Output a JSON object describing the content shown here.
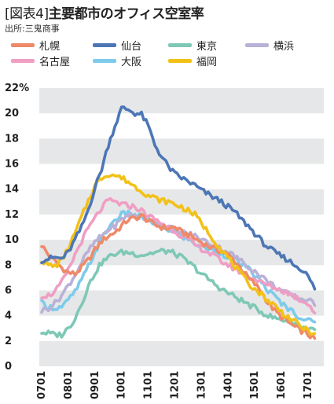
{
  "header": {
    "title_prefix": "[図表4]",
    "title_main": "主要都市のオフィス空室率",
    "source": "出所:三鬼商事"
  },
  "chart_data": {
    "type": "line",
    "title": "[図表4] 主要都市のオフィス空室率",
    "ylim": [
      0,
      22
    ],
    "y_ticks": [
      {
        "value": 22,
        "label": "22%"
      },
      {
        "value": 20,
        "label": "20"
      },
      {
        "value": 18,
        "label": "18"
      },
      {
        "value": 16,
        "label": "16"
      },
      {
        "value": 14,
        "label": "14"
      },
      {
        "value": 12,
        "label": "12"
      },
      {
        "value": 10,
        "label": "10"
      },
      {
        "value": 8,
        "label": "8"
      },
      {
        "value": 6,
        "label": "6"
      },
      {
        "value": 4,
        "label": "4"
      },
      {
        "value": 2,
        "label": "2"
      },
      {
        "value": 0,
        "label": "0"
      }
    ],
    "x_ticks": [
      "0701",
      "0801",
      "0901",
      "1001",
      "1101",
      "1201",
      "1301",
      "1401",
      "1501",
      "1601",
      "1701"
    ],
    "grid": "horizontal bands",
    "legend_position": "top",
    "series": [
      {
        "name": "札幌",
        "color": "#ee8a6a",
        "points": [
          [
            0,
            9.6
          ],
          [
            3,
            8.8
          ],
          [
            6,
            8.3
          ],
          [
            9,
            7.8
          ],
          [
            12,
            7.4
          ],
          [
            15,
            7.3
          ],
          [
            18,
            7.8
          ],
          [
            21,
            8.4
          ],
          [
            24,
            9.2
          ],
          [
            27,
            9.9
          ],
          [
            30,
            10.3
          ],
          [
            33,
            10.6
          ],
          [
            36,
            11.1
          ],
          [
            39,
            11.6
          ],
          [
            42,
            11.7
          ],
          [
            45,
            11.9
          ],
          [
            48,
            11.5
          ],
          [
            51,
            11.2
          ],
          [
            54,
            11.0
          ],
          [
            57,
            10.9
          ],
          [
            60,
            11.0
          ],
          [
            63,
            10.6
          ],
          [
            66,
            10.4
          ],
          [
            69,
            10.1
          ],
          [
            72,
            9.8
          ],
          [
            75,
            9.5
          ],
          [
            78,
            9.3
          ],
          [
            81,
            9.1
          ],
          [
            84,
            8.8
          ],
          [
            87,
            8.3
          ],
          [
            90,
            7.7
          ],
          [
            93,
            7.0
          ],
          [
            96,
            6.5
          ],
          [
            99,
            5.9
          ],
          [
            102,
            5.0
          ],
          [
            105,
            4.4
          ],
          [
            108,
            3.9
          ],
          [
            111,
            3.5
          ],
          [
            114,
            3.1
          ],
          [
            117,
            2.8
          ],
          [
            120,
            2.5
          ],
          [
            123,
            2.2
          ]
        ]
      },
      {
        "name": "仙台",
        "color": "#4d76b6",
        "points": [
          [
            0,
            8.4
          ],
          [
            3,
            8.5
          ],
          [
            6,
            8.6
          ],
          [
            9,
            8.5
          ],
          [
            12,
            9.0
          ],
          [
            15,
            10.0
          ],
          [
            18,
            11.0
          ],
          [
            21,
            12.4
          ],
          [
            24,
            14.1
          ],
          [
            27,
            15.6
          ],
          [
            30,
            17.5
          ],
          [
            33,
            19.0
          ],
          [
            36,
            20.4
          ],
          [
            39,
            20.3
          ],
          [
            42,
            20.0
          ],
          [
            45,
            19.9
          ],
          [
            48,
            19.0
          ],
          [
            51,
            17.5
          ],
          [
            54,
            16.6
          ],
          [
            57,
            15.8
          ],
          [
            60,
            15.2
          ],
          [
            63,
            14.9
          ],
          [
            66,
            14.6
          ],
          [
            69,
            14.3
          ],
          [
            72,
            13.9
          ],
          [
            75,
            13.6
          ],
          [
            78,
            13.3
          ],
          [
            81,
            13.0
          ],
          [
            84,
            12.6
          ],
          [
            87,
            12.2
          ],
          [
            90,
            11.6
          ],
          [
            93,
            11.1
          ],
          [
            96,
            10.5
          ],
          [
            99,
            9.9
          ],
          [
            102,
            9.4
          ],
          [
            105,
            9.0
          ],
          [
            108,
            8.7
          ],
          [
            111,
            8.4
          ],
          [
            114,
            8.0
          ],
          [
            117,
            7.7
          ],
          [
            120,
            7.1
          ],
          [
            123,
            6.1
          ]
        ]
      },
      {
        "name": "東京",
        "color": "#7ec8b6",
        "points": [
          [
            0,
            2.7
          ],
          [
            3,
            2.6
          ],
          [
            6,
            2.5
          ],
          [
            9,
            2.5
          ],
          [
            12,
            3.0
          ],
          [
            15,
            3.8
          ],
          [
            18,
            5.0
          ],
          [
            21,
            6.3
          ],
          [
            24,
            7.4
          ],
          [
            27,
            8.2
          ],
          [
            30,
            8.6
          ],
          [
            33,
            8.9
          ],
          [
            36,
            9.0
          ],
          [
            39,
            9.0
          ],
          [
            42,
            8.9
          ],
          [
            45,
            8.8
          ],
          [
            48,
            8.9
          ],
          [
            51,
            9.0
          ],
          [
            54,
            9.1
          ],
          [
            57,
            9.1
          ],
          [
            60,
            8.9
          ],
          [
            63,
            8.6
          ],
          [
            66,
            8.2
          ],
          [
            69,
            7.8
          ],
          [
            72,
            7.3
          ],
          [
            75,
            6.9
          ],
          [
            78,
            6.5
          ],
          [
            81,
            6.1
          ],
          [
            84,
            5.8
          ],
          [
            87,
            5.5
          ],
          [
            90,
            5.2
          ],
          [
            93,
            4.9
          ],
          [
            96,
            4.6
          ],
          [
            99,
            4.3
          ],
          [
            102,
            4.0
          ],
          [
            105,
            3.8
          ],
          [
            108,
            3.7
          ],
          [
            111,
            3.6
          ],
          [
            114,
            3.4
          ],
          [
            117,
            3.1
          ],
          [
            120,
            3.0
          ],
          [
            123,
            2.9
          ]
        ]
      },
      {
        "name": "横浜",
        "color": "#b9b1d8",
        "points": [
          [
            0,
            4.4
          ],
          [
            3,
            4.6
          ],
          [
            6,
            5.0
          ],
          [
            9,
            5.6
          ],
          [
            12,
            6.4
          ],
          [
            15,
            7.2
          ],
          [
            18,
            8.2
          ],
          [
            21,
            9.1
          ],
          [
            24,
            9.8
          ],
          [
            27,
            10.3
          ],
          [
            30,
            10.8
          ],
          [
            33,
            11.1
          ],
          [
            36,
            11.6
          ],
          [
            39,
            12.0
          ],
          [
            42,
            11.9
          ],
          [
            45,
            11.8
          ],
          [
            48,
            11.7
          ],
          [
            51,
            11.5
          ],
          [
            54,
            11.3
          ],
          [
            57,
            11.0
          ],
          [
            60,
            10.8
          ],
          [
            63,
            10.6
          ],
          [
            66,
            10.5
          ],
          [
            69,
            10.3
          ],
          [
            72,
            10.0
          ],
          [
            75,
            9.8
          ],
          [
            78,
            9.5
          ],
          [
            81,
            9.3
          ],
          [
            84,
            9.0
          ],
          [
            87,
            8.7
          ],
          [
            90,
            8.3
          ],
          [
            93,
            7.9
          ],
          [
            96,
            7.5
          ],
          [
            99,
            7.1
          ],
          [
            102,
            6.7
          ],
          [
            105,
            6.3
          ],
          [
            108,
            6.0
          ],
          [
            111,
            5.7
          ],
          [
            114,
            5.5
          ],
          [
            117,
            5.3
          ],
          [
            120,
            5.3
          ],
          [
            123,
            4.8
          ]
        ]
      },
      {
        "name": "名古屋",
        "color": "#ef9ec4",
        "points": [
          [
            0,
            5.6
          ],
          [
            3,
            5.6
          ],
          [
            6,
            5.9
          ],
          [
            9,
            6.6
          ],
          [
            12,
            7.6
          ],
          [
            15,
            8.8
          ],
          [
            18,
            9.9
          ],
          [
            21,
            10.9
          ],
          [
            24,
            11.7
          ],
          [
            27,
            12.5
          ],
          [
            30,
            13.1
          ],
          [
            33,
            13.0
          ],
          [
            36,
            12.8
          ],
          [
            39,
            12.7
          ],
          [
            42,
            12.6
          ],
          [
            45,
            12.3
          ],
          [
            48,
            11.9
          ],
          [
            51,
            11.6
          ],
          [
            54,
            11.3
          ],
          [
            57,
            11.0
          ],
          [
            60,
            10.7
          ],
          [
            63,
            10.3
          ],
          [
            66,
            10.0
          ],
          [
            69,
            9.6
          ],
          [
            72,
            9.3
          ],
          [
            75,
            9.0
          ],
          [
            78,
            8.7
          ],
          [
            81,
            8.3
          ],
          [
            84,
            8.0
          ],
          [
            87,
            7.7
          ],
          [
            90,
            7.4
          ],
          [
            93,
            7.1
          ],
          [
            96,
            6.9
          ],
          [
            99,
            6.6
          ],
          [
            102,
            6.4
          ],
          [
            105,
            6.2
          ],
          [
            108,
            6.0
          ],
          [
            111,
            5.8
          ],
          [
            114,
            5.5
          ],
          [
            117,
            5.2
          ],
          [
            120,
            5.0
          ],
          [
            123,
            4.2
          ]
        ]
      },
      {
        "name": "大阪",
        "color": "#7dcbea",
        "points": [
          [
            0,
            5.0
          ],
          [
            3,
            4.7
          ],
          [
            6,
            4.6
          ],
          [
            9,
            4.7
          ],
          [
            12,
            5.2
          ],
          [
            15,
            5.9
          ],
          [
            18,
            6.8
          ],
          [
            21,
            7.9
          ],
          [
            24,
            9.0
          ],
          [
            27,
            10.1
          ],
          [
            30,
            10.9
          ],
          [
            33,
            11.6
          ],
          [
            36,
            12.0
          ],
          [
            39,
            12.1
          ],
          [
            42,
            11.9
          ],
          [
            45,
            11.8
          ],
          [
            48,
            11.6
          ],
          [
            51,
            11.3
          ],
          [
            54,
            11.0
          ],
          [
            57,
            10.8
          ],
          [
            60,
            10.6
          ],
          [
            63,
            10.3
          ],
          [
            66,
            10.0
          ],
          [
            69,
            9.7
          ],
          [
            72,
            9.5
          ],
          [
            75,
            9.3
          ],
          [
            78,
            9.1
          ],
          [
            81,
            8.9
          ],
          [
            84,
            8.7
          ],
          [
            87,
            8.4
          ],
          [
            90,
            8.1
          ],
          [
            93,
            7.7
          ],
          [
            96,
            7.2
          ],
          [
            99,
            6.6
          ],
          [
            102,
            6.0
          ],
          [
            105,
            5.5
          ],
          [
            108,
            5.0
          ],
          [
            111,
            4.6
          ],
          [
            114,
            4.2
          ],
          [
            117,
            3.8
          ],
          [
            120,
            3.6
          ],
          [
            123,
            3.5
          ]
        ]
      },
      {
        "name": "福岡",
        "color": "#f2c118",
        "points": [
          [
            0,
            8.4
          ],
          [
            3,
            8.0
          ],
          [
            6,
            7.9
          ],
          [
            9,
            8.4
          ],
          [
            12,
            9.3
          ],
          [
            15,
            10.5
          ],
          [
            18,
            11.8
          ],
          [
            21,
            13.1
          ],
          [
            24,
            14.3
          ],
          [
            27,
            14.9
          ],
          [
            30,
            15.2
          ],
          [
            33,
            15.1
          ],
          [
            36,
            14.9
          ],
          [
            39,
            14.6
          ],
          [
            42,
            14.2
          ],
          [
            45,
            13.9
          ],
          [
            48,
            13.5
          ],
          [
            51,
            13.3
          ],
          [
            54,
            13.1
          ],
          [
            57,
            13.0
          ],
          [
            60,
            12.8
          ],
          [
            63,
            12.6
          ],
          [
            66,
            12.3
          ],
          [
            69,
            12.0
          ],
          [
            72,
            11.3
          ],
          [
            75,
            10.6
          ],
          [
            78,
            9.9
          ],
          [
            81,
            9.2
          ],
          [
            84,
            8.6
          ],
          [
            87,
            7.9
          ],
          [
            90,
            7.2
          ],
          [
            93,
            6.6
          ],
          [
            96,
            6.1
          ],
          [
            99,
            5.7
          ],
          [
            102,
            5.2
          ],
          [
            105,
            4.8
          ],
          [
            108,
            4.3
          ],
          [
            111,
            3.9
          ],
          [
            114,
            3.5
          ],
          [
            117,
            3.1
          ],
          [
            120,
            2.8
          ],
          [
            123,
            2.6
          ]
        ]
      }
    ]
  }
}
